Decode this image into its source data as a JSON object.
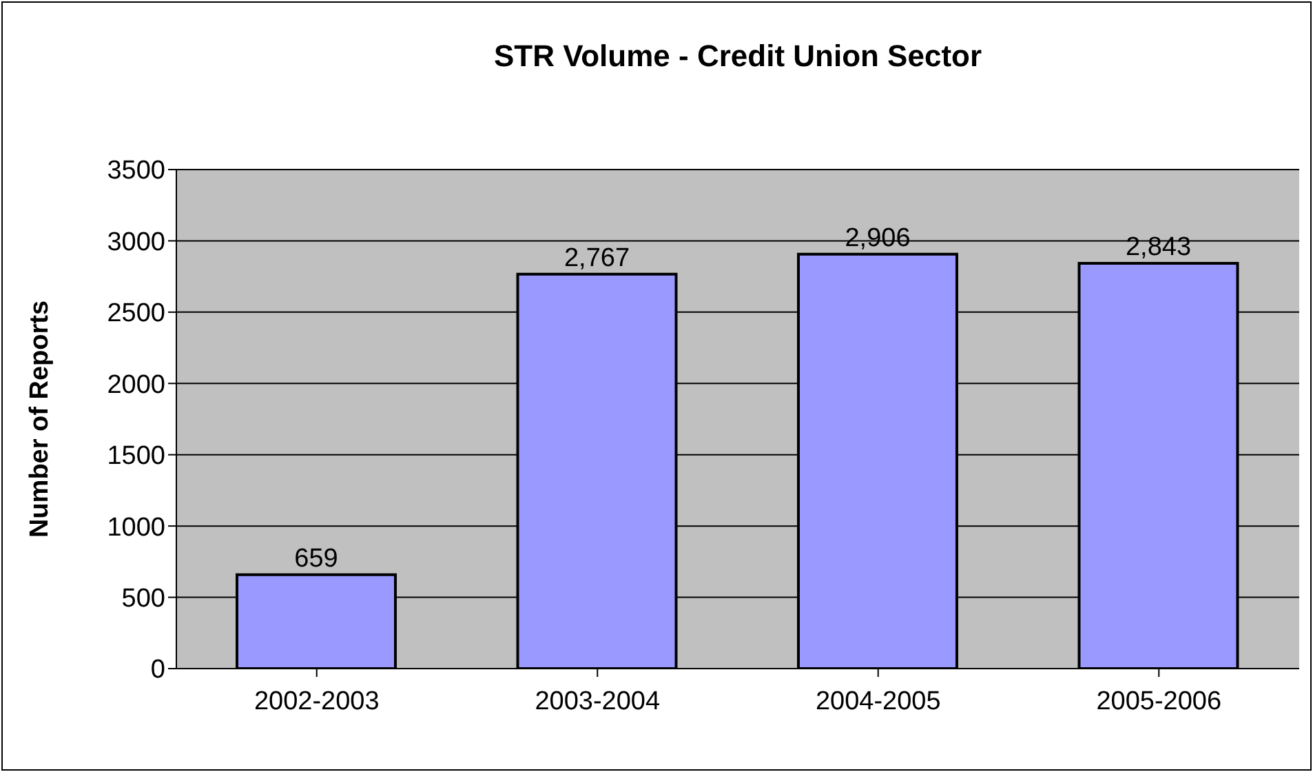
{
  "chart_data": {
    "type": "bar",
    "title": "STR Volume - Credit Union Sector",
    "ylabel": "Number of Reports",
    "categories": [
      "2002-2003",
      "2003-2004",
      "2004-2005",
      "2005-2006"
    ],
    "values": [
      659,
      2767,
      2906,
      2843
    ],
    "value_labels": [
      "659",
      "2,767",
      "2,906",
      "2,843"
    ],
    "color": "#9999ff",
    "ylim": [
      0,
      3500
    ],
    "yticks": [
      0,
      500,
      1000,
      1500,
      2000,
      2500,
      3000,
      3500
    ],
    "grid": "y"
  }
}
